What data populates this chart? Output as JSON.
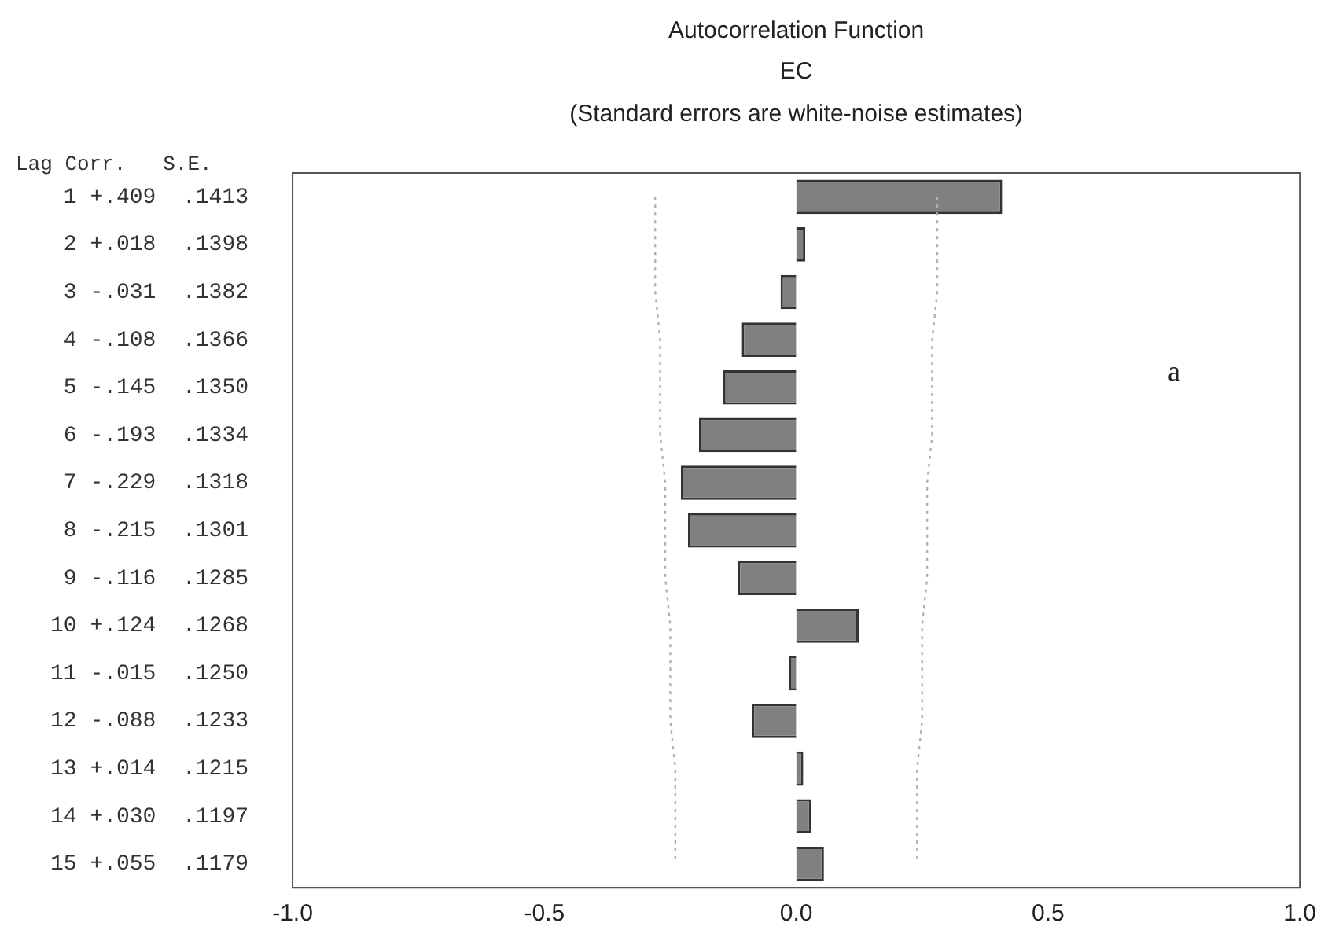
{
  "chart_data": {
    "type": "bar",
    "orientation": "horizontal",
    "title": "Autocorrelation Function",
    "subtitle": "EC",
    "ylabel": "Lag Corr.   S.E.",
    "annotations": [
      "(Standard errors are white-noise estimates)",
      "a"
    ],
    "categories": [
      " 1 +.409  .1413",
      " 2 +.018  .1398",
      " 3 -.031  .1382",
      " 4 -.108  .1366",
      " 5 -.145  .1350",
      " 6 -.193  .1334",
      " 7 -.229  .1318",
      " 8 -.215  .1301",
      " 9 -.116  .1285",
      "10 +.124  .1268",
      "11 -.015  .1250",
      "12 -.088  .1233",
      "13 +.014  .1215",
      "14 +.030  .1197",
      "15 +.055  .1179"
    ],
    "series": [
      {
        "color": "#808080",
        "values": [
          0.409,
          0.018,
          -0.031,
          -0.108,
          -0.145,
          -0.193,
          -0.229,
          -0.215,
          -0.116,
          0.124,
          -0.015,
          -0.088,
          0.014,
          0.03,
          0.055
        ]
      },
      {
        "type": "line",
        "color": "#b0b0b0",
        "line_style": "dotted",
        "values": [
          -0.28,
          -0.28,
          -0.28,
          -0.27,
          -0.27,
          -0.27,
          -0.26,
          -0.26,
          -0.26,
          -0.25,
          -0.25,
          -0.25,
          -0.24,
          -0.24,
          -0.24
        ]
      },
      {
        "type": "line",
        "color": "#b0b0b0",
        "line_style": "dotted",
        "values": [
          0.28,
          0.28,
          0.28,
          0.27,
          0.27,
          0.27,
          0.26,
          0.26,
          0.26,
          0.25,
          0.25,
          0.25,
          0.24,
          0.24,
          0.24
        ]
      }
    ],
    "xlim": [
      -1,
      1
    ],
    "xticks": [
      {
        "value": -1,
        "label": "-1.0"
      },
      {
        "value": -0.5,
        "label": "-0.5"
      },
      {
        "value": 0,
        "label": "0.0"
      },
      {
        "value": 0.5,
        "label": "0.5"
      },
      {
        "value": 1,
        "label": "1.0"
      }
    ],
    "grid": false,
    "legend": false,
    "marker": "none"
  }
}
